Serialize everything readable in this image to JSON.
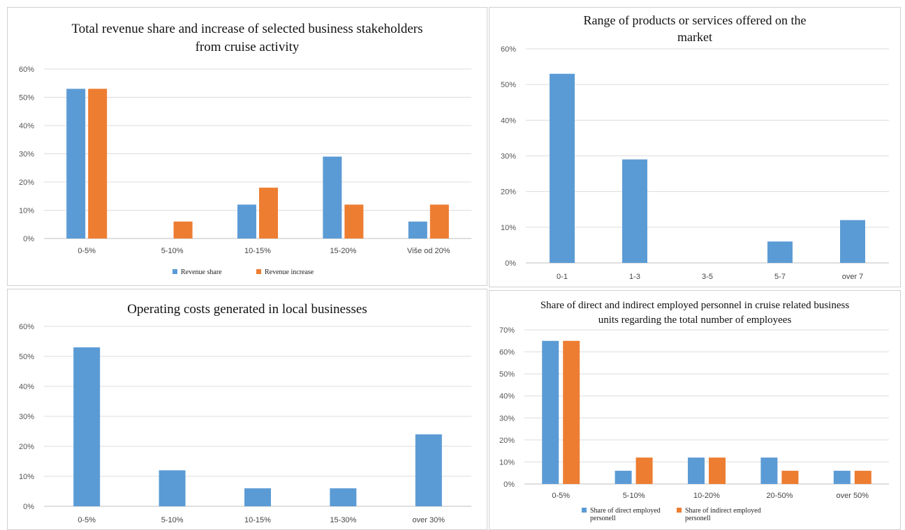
{
  "colors": {
    "blue": "#5b9bd5",
    "orange": "#ed7d31"
  },
  "chart_data": [
    {
      "type": "bar",
      "title": "Total revenue share and increase of selected business stakeholders from cruise activity",
      "title_lines": [
        "Total revenue share and increase of selected business stakeholders",
        "from cruise activity"
      ],
      "categories": [
        "0-5%",
        "5-10%",
        "10-15%",
        "15-20%",
        "Više od 20%"
      ],
      "series": [
        {
          "name": "Revenue share",
          "values": [
            53,
            0,
            12,
            29,
            6
          ]
        },
        {
          "name": "Revenue increase",
          "values": [
            53,
            6,
            18,
            12,
            12
          ]
        }
      ],
      "yticks": [
        "0%",
        "10%",
        "20%",
        "30%",
        "40%",
        "50%",
        "60%"
      ],
      "ylim": [
        0,
        60
      ],
      "grid": true,
      "legend": "bottom"
    },
    {
      "type": "bar",
      "title": "Range of products or services offered on the market",
      "title_lines": [
        "Range of products or services offered on the",
        "market"
      ],
      "categories": [
        "0-1",
        "1-3",
        "3-5",
        "5-7",
        "over  7"
      ],
      "series": [
        {
          "values": [
            53,
            29,
            0,
            6,
            12
          ]
        }
      ],
      "yticks": [
        "0%",
        "10%",
        "20%",
        "30%",
        "40%",
        "50%",
        "60%"
      ],
      "ylim": [
        0,
        60
      ],
      "grid": true,
      "legend": "none"
    },
    {
      "type": "bar",
      "title": "Operating costs generated in local businesses",
      "title_lines": [
        "Operating costs generated in local businesses"
      ],
      "categories": [
        "0-5%",
        "5-10%",
        "10-15%",
        "15-30%",
        "over 30%"
      ],
      "series": [
        {
          "values": [
            53,
            12,
            6,
            6,
            24
          ]
        }
      ],
      "yticks": [
        "0%",
        "10%",
        "20%",
        "30%",
        "40%",
        "50%",
        "60%"
      ],
      "ylim": [
        0,
        60
      ],
      "grid": true,
      "legend": "none"
    },
    {
      "type": "bar",
      "title": "Share of direct and indirect employed personnel in cruise related business units regarding the total number of employees",
      "title_lines": [
        "Share of direct and indirect employed personnel in cruise related business",
        "units regarding the total number of employees"
      ],
      "categories": [
        "0-5%",
        "5-10%",
        "10-20%",
        "20-50%",
        "over 50%"
      ],
      "series": [
        {
          "name": "Share of direct employed personell",
          "name_lines": [
            "Share of direct employed",
            "personell"
          ],
          "values": [
            65,
            6,
            12,
            12,
            6
          ]
        },
        {
          "name": "Share of indirect employed personell",
          "name_lines": [
            "Share of indirect employed",
            "personell"
          ],
          "values": [
            65,
            12,
            12,
            6,
            6
          ]
        }
      ],
      "yticks": [
        "0%",
        "10%",
        "20%",
        "30%",
        "40%",
        "50%",
        "60%",
        "70%"
      ],
      "ylim": [
        0,
        70
      ],
      "grid": true,
      "legend": "bottom"
    }
  ]
}
